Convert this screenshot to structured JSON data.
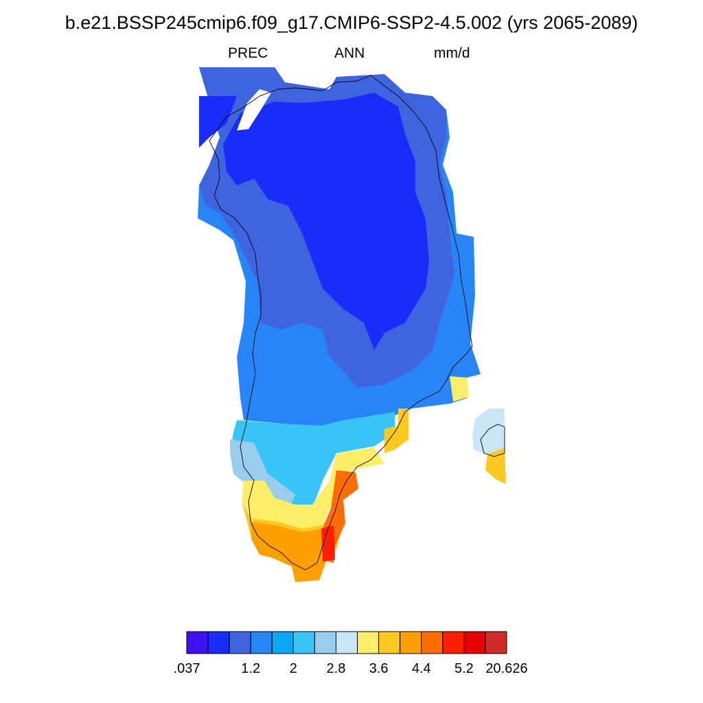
{
  "title": "b.e21.BSSP245cmip6.f09_g17.CMIP6-SSP2-4.5.002 (yrs 2065-2089)",
  "subtitle": {
    "variable": "PREC",
    "season": "ANN",
    "units": "mm/d"
  },
  "colorbar": {
    "colors": [
      "#3d12ee",
      "#1a2cfa",
      "#3e64e0",
      "#2785f7",
      "#0aa7f7",
      "#38c4f7",
      "#98cdee",
      "#c8e6f6",
      "#fdee6a",
      "#fdc820",
      "#ffa000",
      "#ff6c00",
      "#ff1e00",
      "#e60000",
      "#d12a2a"
    ],
    "labels": [
      ".037",
      "1.2",
      "2",
      "2.8",
      "3.6",
      "4.4",
      "5.2",
      "20.626"
    ]
  },
  "map": {
    "description_colors": {
      "ocean": "#ffffff",
      "coastline": "#000000"
    }
  }
}
